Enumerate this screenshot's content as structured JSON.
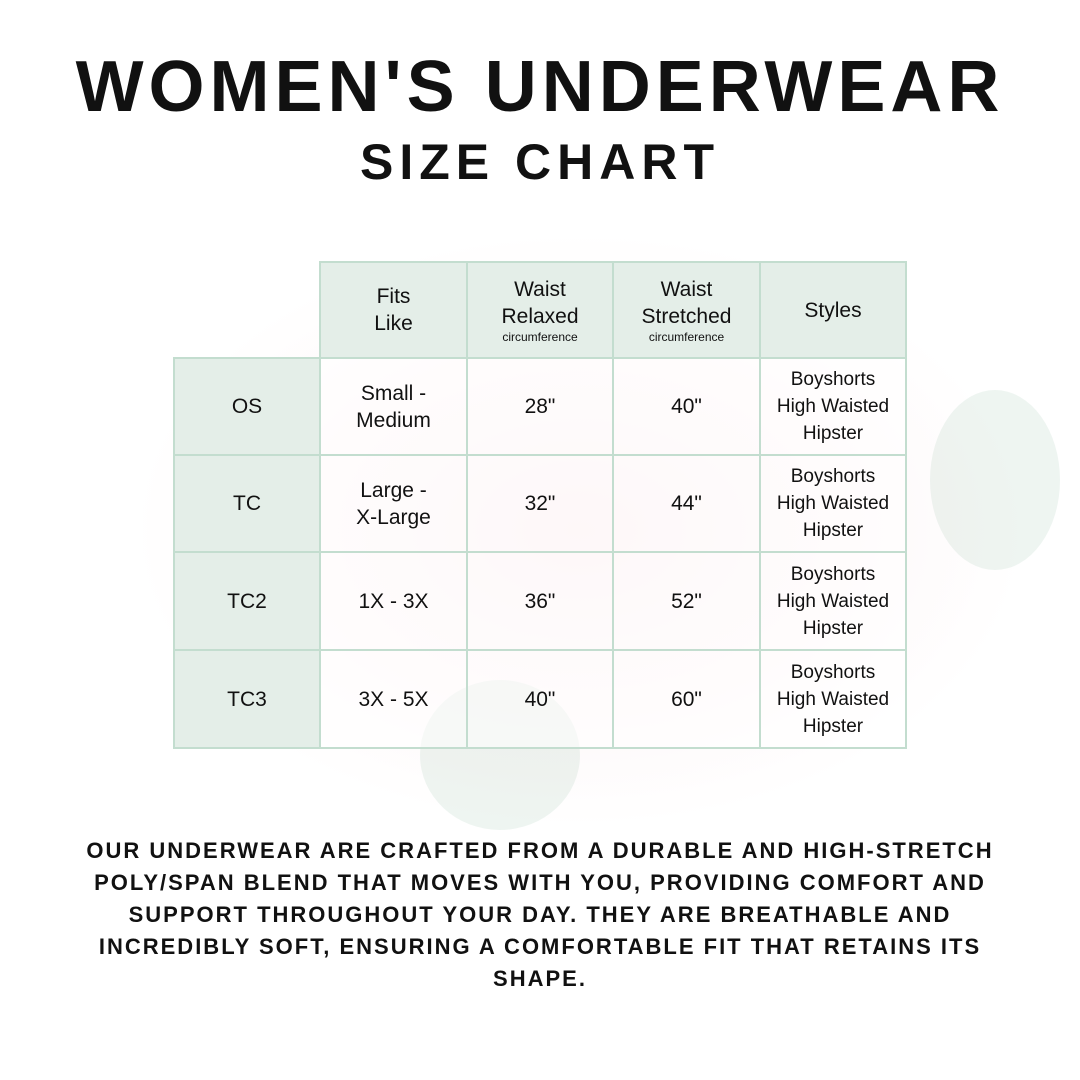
{
  "title": "WOMEN'S UNDERWEAR",
  "subtitle": "SIZE CHART",
  "table": {
    "headers": [
      {
        "line1": "Fits",
        "line2": "Like",
        "sub": ""
      },
      {
        "line1": "Waist",
        "line2": "Relaxed",
        "sub": "circumference"
      },
      {
        "line1": "Waist",
        "line2": "Stretched",
        "sub": "circumference"
      },
      {
        "line1": "Styles",
        "line2": "",
        "sub": ""
      }
    ],
    "rows": [
      {
        "size": "OS",
        "fits1": "Small -",
        "fits2": "Medium",
        "relaxed": "28\"",
        "stretched": "40\"",
        "styles": [
          "Boyshorts",
          "High Waisted",
          "Hipster"
        ]
      },
      {
        "size": "TC",
        "fits1": "Large -",
        "fits2": "X-Large",
        "relaxed": "32\"",
        "stretched": "44\"",
        "styles": [
          "Boyshorts",
          "High Waisted",
          "Hipster"
        ]
      },
      {
        "size": "TC2",
        "fits1": "1X - 3X",
        "fits2": "",
        "relaxed": "36\"",
        "stretched": "52\"",
        "styles": [
          "Boyshorts",
          "High Waisted",
          "Hipster"
        ]
      },
      {
        "size": "TC3",
        "fits1": "3X - 5X",
        "fits2": "",
        "relaxed": "40\"",
        "stretched": "60\"",
        "styles": [
          "Boyshorts",
          "High Waisted",
          "Hipster"
        ]
      }
    ]
  },
  "description": "OUR UNDERWEAR ARE CRAFTED FROM A DURABLE AND HIGH-STRETCH POLY/SPAN BLEND THAT MOVES WITH YOU, PROVIDING COMFORT AND SUPPORT THROUGHOUT YOUR DAY. THEY ARE BREATHABLE AND INCREDIBLY SOFT, ENSURING A COMFORTABLE FIT THAT RETAINS ITS SHAPE.",
  "colors": {
    "border": "#c3ddcf",
    "header_bg": "#e4eee8"
  }
}
